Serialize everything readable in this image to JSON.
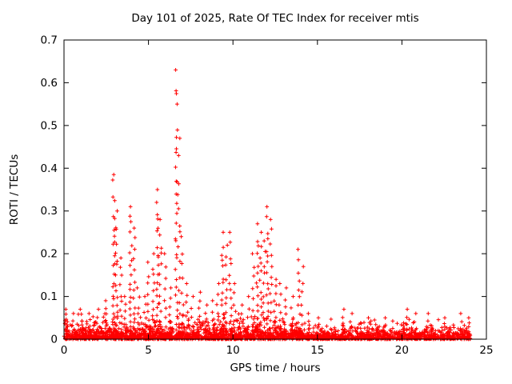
{
  "chart_data": {
    "type": "scatter",
    "title": "Day 101 of 2025, Rate Of TEC Index for receiver mtis",
    "xlabel": "GPS time / hours",
    "ylabel": "ROTI / TECUs",
    "xlim": [
      0,
      25
    ],
    "ylim": [
      0,
      0.7
    ],
    "xticks": [
      0,
      5,
      10,
      15,
      20,
      25
    ],
    "yticks": [
      0,
      0.1,
      0.2,
      0.3,
      0.4,
      0.5,
      0.6,
      0.7
    ],
    "grid": false,
    "legend": "none",
    "marker": "plus",
    "marker_color": "#ff0000",
    "seed": 101,
    "baseline_band": [
      {
        "x0": 0.0,
        "x1": 14.2,
        "n": 1500,
        "scale": 0.012,
        "cap": 0.062
      },
      {
        "x0": 14.2,
        "x1": 24.05,
        "n": 950,
        "scale": 0.009,
        "cap": 0.048
      }
    ],
    "spikes": [
      {
        "x": 0.15,
        "ymax": 0.07,
        "n": 8
      },
      {
        "x": 0.5,
        "ymax": 0.06,
        "n": 6
      },
      {
        "x": 1.0,
        "ymax": 0.07,
        "n": 8
      },
      {
        "x": 1.5,
        "ymax": 0.06,
        "n": 6
      },
      {
        "x": 2.0,
        "ymax": 0.07,
        "n": 6
      },
      {
        "x": 2.5,
        "ymax": 0.09,
        "n": 8
      },
      {
        "x": 2.95,
        "ymax": 0.385,
        "n": 26
      },
      {
        "x": 3.1,
        "ymax": 0.3,
        "n": 18
      },
      {
        "x": 3.35,
        "ymax": 0.19,
        "n": 12
      },
      {
        "x": 3.6,
        "ymax": 0.1,
        "n": 8
      },
      {
        "x": 3.95,
        "ymax": 0.31,
        "n": 20
      },
      {
        "x": 4.15,
        "ymax": 0.26,
        "n": 14
      },
      {
        "x": 4.4,
        "ymax": 0.12,
        "n": 8
      },
      {
        "x": 4.8,
        "ymax": 0.1,
        "n": 8
      },
      {
        "x": 5.0,
        "ymax": 0.18,
        "n": 10
      },
      {
        "x": 5.3,
        "ymax": 0.2,
        "n": 12
      },
      {
        "x": 5.55,
        "ymax": 0.35,
        "n": 22
      },
      {
        "x": 5.7,
        "ymax": 0.28,
        "n": 14
      },
      {
        "x": 6.0,
        "ymax": 0.2,
        "n": 10
      },
      {
        "x": 6.3,
        "ymax": 0.12,
        "n": 8
      },
      {
        "x": 6.65,
        "ymax": 0.63,
        "n": 30
      },
      {
        "x": 6.8,
        "ymax": 0.47,
        "n": 16
      },
      {
        "x": 7.0,
        "ymax": 0.24,
        "n": 10
      },
      {
        "x": 7.3,
        "ymax": 0.13,
        "n": 8
      },
      {
        "x": 7.6,
        "ymax": 0.1,
        "n": 6
      },
      {
        "x": 8.0,
        "ymax": 0.11,
        "n": 8
      },
      {
        "x": 8.4,
        "ymax": 0.08,
        "n": 6
      },
      {
        "x": 8.8,
        "ymax": 0.09,
        "n": 6
      },
      {
        "x": 9.1,
        "ymax": 0.13,
        "n": 8
      },
      {
        "x": 9.4,
        "ymax": 0.25,
        "n": 16
      },
      {
        "x": 9.6,
        "ymax": 0.22,
        "n": 12
      },
      {
        "x": 9.85,
        "ymax": 0.25,
        "n": 14
      },
      {
        "x": 10.1,
        "ymax": 0.13,
        "n": 8
      },
      {
        "x": 10.5,
        "ymax": 0.08,
        "n": 6
      },
      {
        "x": 10.9,
        "ymax": 0.1,
        "n": 6
      },
      {
        "x": 11.2,
        "ymax": 0.2,
        "n": 10
      },
      {
        "x": 11.45,
        "ymax": 0.27,
        "n": 16
      },
      {
        "x": 11.65,
        "ymax": 0.25,
        "n": 14
      },
      {
        "x": 11.85,
        "ymax": 0.23,
        "n": 12
      },
      {
        "x": 12.05,
        "ymax": 0.31,
        "n": 18
      },
      {
        "x": 12.25,
        "ymax": 0.28,
        "n": 14
      },
      {
        "x": 12.5,
        "ymax": 0.14,
        "n": 12
      },
      {
        "x": 12.8,
        "ymax": 0.13,
        "n": 8
      },
      {
        "x": 13.1,
        "ymax": 0.12,
        "n": 8
      },
      {
        "x": 13.5,
        "ymax": 0.1,
        "n": 6
      },
      {
        "x": 13.9,
        "ymax": 0.21,
        "n": 12
      },
      {
        "x": 14.1,
        "ymax": 0.17,
        "n": 8
      },
      {
        "x": 14.5,
        "ymax": 0.06,
        "n": 5
      },
      {
        "x": 15.0,
        "ymax": 0.05,
        "n": 4
      },
      {
        "x": 16.5,
        "ymax": 0.07,
        "n": 6
      },
      {
        "x": 17.0,
        "ymax": 0.06,
        "n": 5
      },
      {
        "x": 18.0,
        "ymax": 0.05,
        "n": 4
      },
      {
        "x": 19.0,
        "ymax": 0.05,
        "n": 4
      },
      {
        "x": 20.3,
        "ymax": 0.07,
        "n": 6
      },
      {
        "x": 20.8,
        "ymax": 0.06,
        "n": 5
      },
      {
        "x": 21.5,
        "ymax": 0.06,
        "n": 5
      },
      {
        "x": 22.5,
        "ymax": 0.05,
        "n": 4
      },
      {
        "x": 23.5,
        "ymax": 0.06,
        "n": 5
      },
      {
        "x": 23.9,
        "ymax": 0.05,
        "n": 4
      }
    ]
  }
}
